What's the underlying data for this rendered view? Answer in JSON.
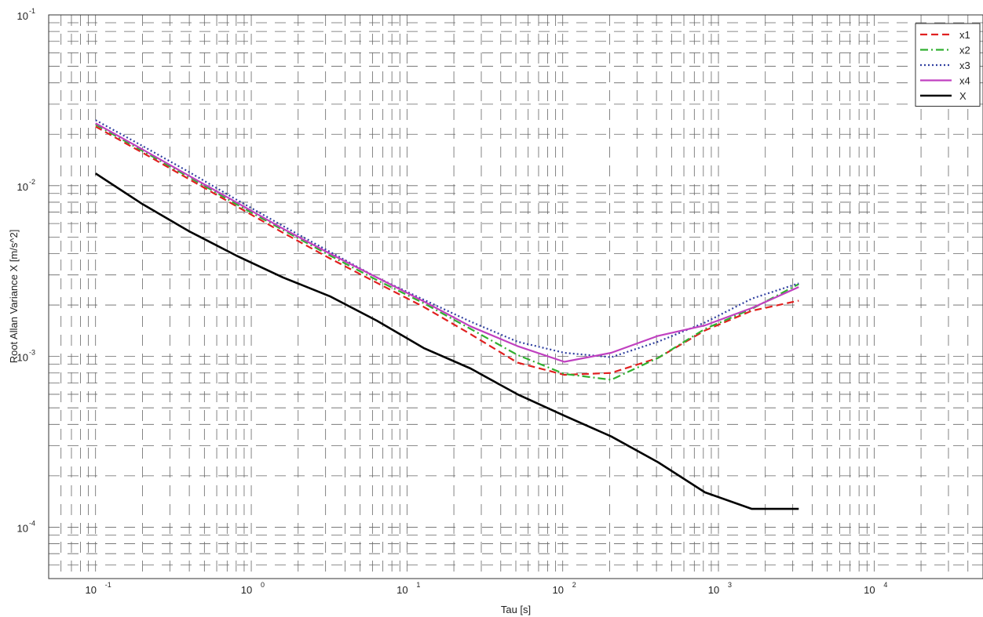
{
  "chart_data": {
    "type": "line",
    "xscale": "log",
    "yscale": "log",
    "xlim": [
      0.05,
      50000
    ],
    "ylim": [
      5e-05,
      0.1
    ],
    "grid": true,
    "legend_position": "top-right",
    "xlabel": "Tau [s]",
    "ylabel": "Root Allan Variance   X     [m/s^2]",
    "x_ticks": [
      {
        "value": 0.1,
        "base": "10",
        "exp": "-1"
      },
      {
        "value": 1,
        "base": "10",
        "exp": "0"
      },
      {
        "value": 10,
        "base": "10",
        "exp": "1"
      },
      {
        "value": 100,
        "base": "10",
        "exp": "2"
      },
      {
        "value": 1000,
        "base": "10",
        "exp": "3"
      },
      {
        "value": 10000,
        "base": "10",
        "exp": "4"
      }
    ],
    "y_ticks": [
      {
        "value": 0.1,
        "base": "10",
        "exp": "-1"
      },
      {
        "value": 0.01,
        "base": "10",
        "exp": "-2"
      },
      {
        "value": 0.001,
        "base": "10",
        "exp": "-3"
      },
      {
        "value": 0.0001,
        "base": "10",
        "exp": "-4"
      }
    ],
    "series": [
      {
        "name": "x1",
        "color": "#e02020",
        "dash": "dashed",
        "x": [
          0.1,
          0.2,
          0.4,
          0.8,
          1.6,
          3.2,
          6.4,
          12.8,
          25.6,
          51.2,
          102.4,
          204.8,
          409.6,
          819.2,
          1638.4,
          3276.8
        ],
        "y": [
          0.0222,
          0.0156,
          0.0109,
          0.0076,
          0.0053,
          0.00375,
          0.0027,
          0.00195,
          0.00135,
          0.00092,
          0.00078,
          0.0008,
          0.00098,
          0.00142,
          0.00185,
          0.00212
        ]
      },
      {
        "name": "x2",
        "color": "#30b030",
        "dash": "dashdot",
        "x": [
          0.1,
          0.2,
          0.4,
          0.8,
          1.6,
          3.2,
          6.4,
          12.8,
          25.6,
          51.2,
          102.4,
          204.8,
          409.6,
          819.2,
          1638.4,
          3276.8
        ],
        "y": [
          0.0228,
          0.016,
          0.0112,
          0.0078,
          0.0055,
          0.0039,
          0.0028,
          0.00205,
          0.00145,
          0.00102,
          0.00079,
          0.00073,
          0.00098,
          0.00145,
          0.0019,
          0.00265
        ]
      },
      {
        "name": "x3",
        "color": "#3040a0",
        "dash": "dotted",
        "x": [
          0.1,
          0.2,
          0.4,
          0.8,
          1.6,
          3.2,
          6.4,
          12.8,
          25.6,
          51.2,
          102.4,
          204.8,
          409.6,
          819.2,
          1638.4,
          3276.8
        ],
        "y": [
          0.0242,
          0.0171,
          0.012,
          0.0083,
          0.0058,
          0.0041,
          0.0029,
          0.00215,
          0.0016,
          0.00122,
          0.00105,
          0.00099,
          0.00122,
          0.00158,
          0.00218,
          0.00268
        ]
      },
      {
        "name": "x4",
        "color": "#c040c0",
        "dash": "solid",
        "x": [
          0.1,
          0.2,
          0.4,
          0.8,
          1.6,
          3.2,
          6.4,
          12.8,
          25.6,
          51.2,
          102.4,
          204.8,
          409.6,
          819.2,
          1638.4,
          3276.8
        ],
        "y": [
          0.0232,
          0.0163,
          0.0114,
          0.008,
          0.0056,
          0.004,
          0.0029,
          0.0021,
          0.0015,
          0.00115,
          0.00093,
          0.00105,
          0.00132,
          0.00152,
          0.00192,
          0.00255
        ]
      },
      {
        "name": "X",
        "color": "#000000",
        "dash": "solid",
        "x": [
          0.1,
          0.2,
          0.4,
          0.8,
          1.6,
          3.2,
          6.4,
          12.8,
          25.6,
          51.2,
          102.4,
          204.8,
          409.6,
          819.2,
          1638.4,
          3276.8
        ],
        "y": [
          0.0118,
          0.0078,
          0.0054,
          0.0039,
          0.0029,
          0.00225,
          0.00162,
          0.00112,
          0.00085,
          0.0006,
          0.00045,
          0.00034,
          0.00024,
          0.00016,
          0.000128,
          0.000128
        ]
      }
    ]
  }
}
